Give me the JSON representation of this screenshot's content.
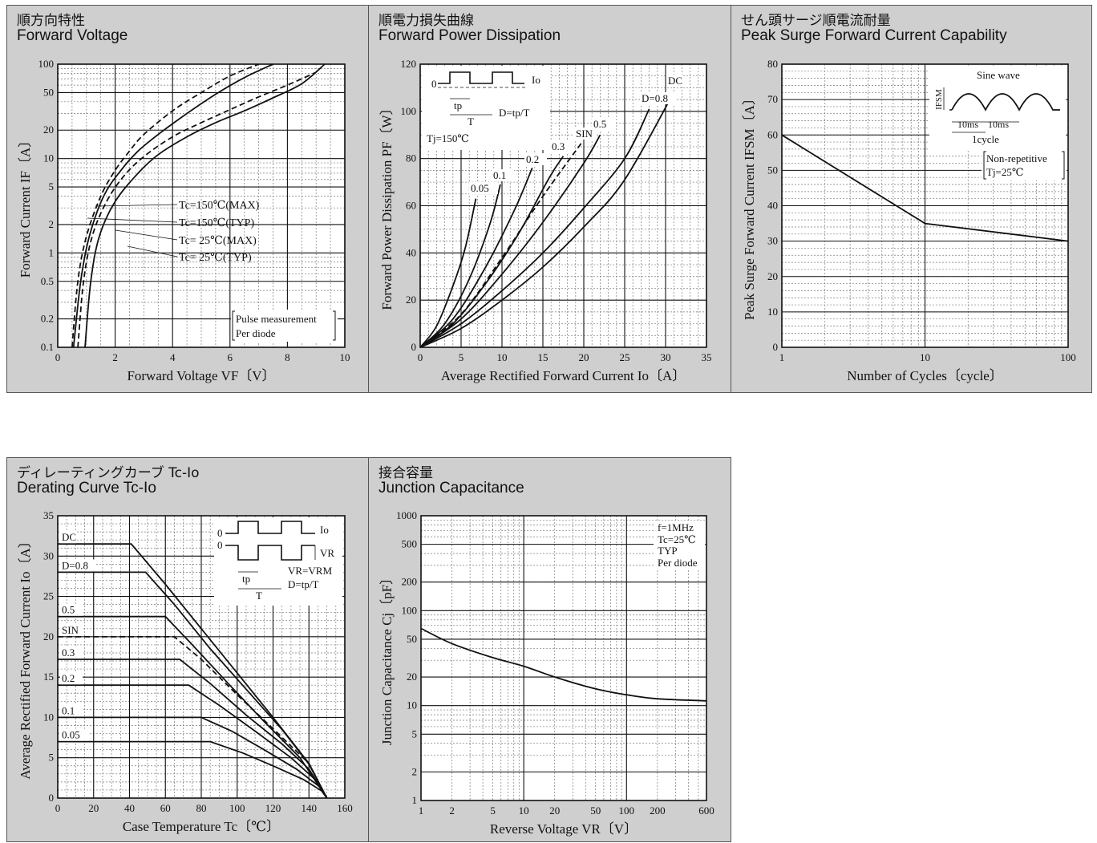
{
  "colors": {
    "panel_bg": "#cfcfcf",
    "plot_bg": "#ffffff",
    "grid_major": "#111111",
    "grid_minor": "#7a7a7a",
    "line": "#111111"
  },
  "panels": [
    {
      "title_jp": "順方向特性",
      "title_en": "Forward Voltage"
    },
    {
      "title_jp": "順電力損失曲線",
      "title_en": "Forward Power Dissipation"
    },
    {
      "title_jp": "せん頭サージ順電流耐量",
      "title_en": "Peak Surge Forward Current Capability"
    },
    {
      "title_jp": "ディレーティングカーブ Tc-Io",
      "title_en": "Derating Curve Tc-Io"
    },
    {
      "title_jp": "接合容量",
      "title_en": "Junction Capacitance"
    }
  ],
  "chart_data": [
    {
      "type": "line",
      "xlabel": "Forward Voltage  VF〔V〕",
      "ylabel": "Forward Current  IF〔A〕",
      "xlim": [
        0,
        10
      ],
      "ylim": [
        0.1,
        100
      ],
      "yscale": "log",
      "xticks": [
        "0",
        "2",
        "4",
        "6",
        "8",
        "10"
      ],
      "yticks": [
        "0.1",
        "0.2",
        "0.5",
        "1",
        "2",
        "5",
        "10",
        "20",
        "50",
        "100"
      ],
      "annotations": [
        "Pulse measurement",
        "Per diode"
      ],
      "series": [
        {
          "name": "Tc=150℃(MAX)",
          "dashed": true,
          "x": [
            0.5,
            0.7,
            1.0,
            1.5,
            2.0,
            2.5,
            3.0,
            4.0,
            5.0,
            6.0,
            7.0
          ],
          "y": [
            0.1,
            0.5,
            1.5,
            4,
            7.5,
            12,
            18,
            32,
            50,
            75,
            100
          ]
        },
        {
          "name": "Tc=150℃(TYP)",
          "dashed": false,
          "x": [
            0.55,
            0.8,
            1.1,
            1.6,
            2.2,
            2.8,
            3.5,
            4.5,
            5.5,
            6.5,
            7.5
          ],
          "y": [
            0.1,
            0.5,
            1.5,
            4,
            7.5,
            12,
            18,
            30,
            48,
            72,
            100
          ]
        },
        {
          "name": "Tc= 25℃(MAX)",
          "dashed": true,
          "x": [
            0.7,
            0.9,
            1.2,
            1.7,
            2.3,
            3.0,
            4.0,
            5.0,
            6.0,
            7.0,
            8.0,
            9.0
          ],
          "y": [
            0.1,
            0.5,
            1.5,
            3.5,
            6.5,
            10.5,
            17,
            24,
            33,
            45,
            60,
            82
          ]
        },
        {
          "name": "Tc= 25℃(TYP)",
          "dashed": false,
          "x": [
            0.95,
            1.15,
            1.45,
            2.0,
            2.8,
            3.5,
            4.5,
            5.5,
            6.5,
            7.5,
            8.5,
            9.3
          ],
          "y": [
            0.1,
            0.5,
            1.5,
            3.5,
            7,
            11,
            17,
            24,
            32,
            44,
            62,
            100
          ]
        }
      ]
    },
    {
      "type": "line",
      "xlabel": "Average Rectified Forward Current  Io〔A〕",
      "ylabel": "Forward Power Dissipation  PF〔W〕",
      "xlim": [
        0,
        35
      ],
      "ylim": [
        0,
        120
      ],
      "xticks": [
        "0",
        "5",
        "10",
        "15",
        "20",
        "25",
        "30",
        "35"
      ],
      "yticks": [
        "0",
        "20",
        "40",
        "60",
        "80",
        "100",
        "120"
      ],
      "annotations": [
        "Io",
        "tp",
        "T",
        "D=tp/T",
        "Tj=150℃",
        "0"
      ],
      "series": [
        {
          "name": "0.05",
          "dashed": false,
          "x": [
            0,
            2,
            4,
            5.5,
            6.8
          ],
          "y": [
            0,
            9,
            26,
            42,
            63
          ]
        },
        {
          "name": "0.1",
          "dashed": false,
          "x": [
            0,
            3,
            6,
            8.5,
            9.8
          ],
          "y": [
            0,
            10,
            29,
            52,
            69
          ]
        },
        {
          "name": "0.2",
          "dashed": false,
          "x": [
            0,
            4,
            8,
            11.5,
            13.7
          ],
          "y": [
            0,
            12,
            34,
            58,
            76
          ]
        },
        {
          "name": "0.3",
          "dashed": false,
          "x": [
            0,
            4,
            8,
            12,
            15.8,
            17.5
          ],
          "y": [
            0,
            10,
            27,
            48,
            72,
            81
          ]
        },
        {
          "name": "SIN",
          "dashed": true,
          "x": [
            0,
            5,
            10,
            15,
            19.8
          ],
          "y": [
            0,
            14,
            38,
            64,
            87
          ]
        },
        {
          "name": "0.5",
          "dashed": false,
          "x": [
            0,
            5,
            10,
            15,
            20,
            22
          ],
          "y": [
            0,
            12,
            31,
            53,
            78,
            90
          ]
        },
        {
          "name": "D=0.8",
          "dashed": false,
          "x": [
            0,
            5,
            10,
            15,
            20,
            25,
            28
          ],
          "y": [
            0,
            10,
            24,
            40,
            59,
            80,
            101
          ]
        },
        {
          "name": "DC",
          "dashed": false,
          "x": [
            0,
            5,
            10,
            15,
            20,
            25,
            31
          ],
          "y": [
            0,
            8,
            20,
            34,
            51,
            71,
            108
          ]
        }
      ]
    },
    {
      "type": "line",
      "xlabel": "Number of Cycles〔cycle〕",
      "ylabel": "Peak Surge Forward Current  IFSM〔A〕",
      "xlim": [
        1,
        100
      ],
      "xscale": "log",
      "ylim": [
        0,
        80
      ],
      "xticks": [
        "1",
        "10",
        "100"
      ],
      "yticks": [
        "0",
        "10",
        "20",
        "30",
        "40",
        "50",
        "60",
        "70",
        "80"
      ],
      "annotations": [
        "Sine wave",
        "IFSM",
        "10ms",
        "10ms",
        "1cycle",
        "Non-repetitive",
        "Tj=25℃"
      ],
      "series": [
        {
          "x": [
            1,
            10,
            100
          ],
          "y": [
            60,
            35,
            30
          ]
        }
      ]
    },
    {
      "type": "line",
      "xlabel": "Case Temperature  Tc〔℃〕",
      "ylabel": "Average Rectified Forward Current  Io〔A〕",
      "xlim": [
        0,
        160
      ],
      "ylim": [
        0,
        35
      ],
      "xticks": [
        "0",
        "20",
        "40",
        "60",
        "80",
        "100",
        "120",
        "140",
        "160"
      ],
      "yticks": [
        "0",
        "5",
        "10",
        "15",
        "20",
        "25",
        "30",
        "35"
      ],
      "annotations": [
        "Io",
        "VR",
        "VR=VRM",
        "tp",
        "T",
        "D=tp/T",
        "0",
        "0"
      ],
      "series": [
        {
          "name": "DC",
          "dashed": false,
          "x": [
            0,
            41,
            60,
            80,
            100,
            120,
            140,
            150
          ],
          "y": [
            31.5,
            31.5,
            26.5,
            21,
            15.5,
            10,
            4.3,
            0
          ]
        },
        {
          "name": "D=0.8",
          "dashed": false,
          "x": [
            0,
            49,
            65,
            85,
            105,
            125,
            140,
            150
          ],
          "y": [
            28,
            28,
            24,
            18.5,
            13.5,
            8.5,
            4.2,
            0
          ]
        },
        {
          "name": "0.5",
          "dashed": false,
          "x": [
            0,
            60,
            75,
            95,
            115,
            135,
            150
          ],
          "y": [
            22.5,
            22.5,
            19,
            14.2,
            9.5,
            5,
            0
          ]
        },
        {
          "name": "SIN",
          "dashed": true,
          "x": [
            0,
            65,
            80,
            100,
            120,
            140,
            150
          ],
          "y": [
            20,
            20,
            17.2,
            12.8,
            8.6,
            4.3,
            0
          ]
        },
        {
          "name": "0.3",
          "dashed": false,
          "x": [
            0,
            68,
            85,
            105,
            125,
            140,
            150
          ],
          "y": [
            17.2,
            17.2,
            14.2,
            10.3,
            6.7,
            3.6,
            0
          ]
        },
        {
          "name": "0.2",
          "dashed": false,
          "x": [
            0,
            73,
            90,
            110,
            130,
            145,
            150
          ],
          "y": [
            14,
            14,
            11.5,
            8.3,
            5,
            2,
            0
          ]
        },
        {
          "name": "0.1",
          "dashed": false,
          "x": [
            0,
            80,
            97,
            115,
            133,
            146,
            150
          ],
          "y": [
            10,
            10,
            8.3,
            6,
            3.6,
            1.4,
            0
          ]
        },
        {
          "name": "0.05",
          "dashed": false,
          "x": [
            0,
            85,
            103,
            120,
            137,
            147,
            150
          ],
          "y": [
            7,
            7,
            5.6,
            4,
            2.3,
            0.9,
            0
          ]
        }
      ]
    },
    {
      "type": "line",
      "xlabel": "Reverse Voltage  VR〔V〕",
      "ylabel": "Junction Capacitance  Cj〔pF〕",
      "xscale": "log",
      "yscale": "log",
      "xlim": [
        1,
        600
      ],
      "ylim": [
        1,
        1000
      ],
      "xticks": [
        "1",
        "2",
        "5",
        "10",
        "20",
        "50",
        "100",
        "200",
        "600"
      ],
      "yticks": [
        "1",
        "2",
        "5",
        "10",
        "20",
        "50",
        "100",
        "200",
        "500",
        "1000"
      ],
      "annotations": [
        "f=1MHz",
        "Tc=25℃",
        "TYP",
        "Per diode"
      ],
      "series": [
        {
          "x": [
            1,
            2,
            5,
            10,
            20,
            50,
            100,
            200,
            600
          ],
          "y": [
            65,
            45,
            32,
            26,
            20,
            15,
            13,
            11.8,
            11.2
          ]
        }
      ]
    }
  ]
}
